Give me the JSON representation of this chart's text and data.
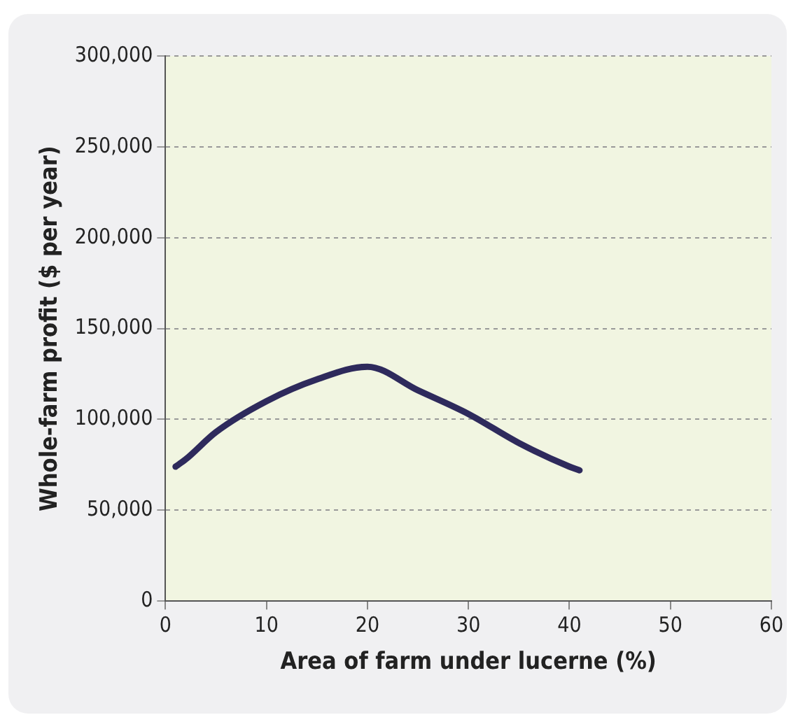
{
  "chart_data": {
    "type": "line",
    "xlabel": "Area of farm under lucerne (%)",
    "ylabel": "Whole-farm profit ($ per year)",
    "xlim": [
      0,
      60
    ],
    "xticks": [
      0,
      10,
      20,
      30,
      40,
      50,
      60
    ],
    "ylim": [
      0,
      300000
    ],
    "yticks": [
      {
        "value": 0,
        "label": "0"
      },
      {
        "value": 50000,
        "label": "50,000"
      },
      {
        "value": 100000,
        "label": "100,000"
      },
      {
        "value": 150000,
        "label": "150,000"
      },
      {
        "value": 200000,
        "label": "200,000"
      },
      {
        "value": 250000,
        "label": "250,000"
      },
      {
        "value": 300000,
        "label": "300,000"
      }
    ],
    "grid": "y",
    "legend": false,
    "marker": "none",
    "line_style": "solid",
    "series": [
      {
        "color": "#2e2a5c",
        "x": [
          1,
          2,
          5,
          10,
          15,
          20,
          25,
          30,
          35,
          40,
          41
        ],
        "values": [
          74000,
          78000,
          93000,
          110000,
          122000,
          129000,
          116000,
          103000,
          87000,
          74000,
          72000
        ]
      }
    ]
  }
}
